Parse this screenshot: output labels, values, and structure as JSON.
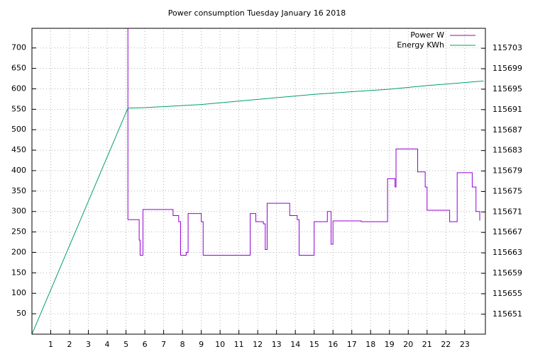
{
  "chart_data": {
    "type": "line",
    "title": "Power consumption Tuesday January 16 2018",
    "xlim": [
      0,
      24.1
    ],
    "xticks": [
      1,
      2,
      3,
      4,
      5,
      6,
      7,
      8,
      9,
      10,
      11,
      12,
      13,
      14,
      15,
      16,
      17,
      18,
      19,
      20,
      21,
      22,
      23
    ],
    "ylim": [
      0,
      748
    ],
    "yticks": [
      50,
      100,
      150,
      200,
      250,
      300,
      350,
      400,
      450,
      500,
      550,
      600,
      650,
      700
    ],
    "y2lim": [
      115647.1,
      115706.9
    ],
    "y2ticks": [
      115651,
      115655,
      115659,
      115663,
      115667,
      115671,
      115675,
      115679,
      115683,
      115687,
      115691,
      115695,
      115699,
      115703
    ],
    "grid": true,
    "legend": "top-right",
    "series": [
      {
        "name": "Power W",
        "color": "#9400d3",
        "x": [
          5.1,
          5.1,
          5.7,
          5.7,
          5.75,
          5.75,
          5.9,
          5.9,
          7.5,
          7.5,
          7.8,
          7.8,
          7.9,
          7.9,
          8.2,
          8.2,
          8.3,
          8.3,
          9.0,
          9.0,
          9.1,
          9.1,
          11.6,
          11.6,
          11.9,
          11.9,
          12.3,
          12.3,
          12.4,
          12.4,
          12.5,
          12.5,
          13.7,
          13.7,
          14.1,
          14.1,
          14.2,
          14.2,
          15.0,
          15.0,
          15.7,
          15.7,
          15.9,
          15.9,
          16.0,
          16.0,
          17.5,
          17.5,
          18.9,
          18.9,
          19.3,
          19.3,
          19.35,
          19.35,
          20.5,
          20.5,
          20.9,
          20.9,
          21.0,
          21.0,
          22.2,
          22.2,
          22.6,
          22.6,
          23.4,
          23.4,
          23.6,
          23.6,
          23.8,
          23.8
        ],
        "values": [
          748,
          280,
          280,
          230,
          230,
          193,
          193,
          305,
          305,
          290,
          290,
          275,
          275,
          193,
          193,
          200,
          200,
          295,
          295,
          275,
          275,
          193,
          193,
          295,
          295,
          275,
          275,
          270,
          270,
          207,
          207,
          320,
          320,
          290,
          290,
          280,
          280,
          193,
          193,
          275,
          275,
          300,
          300,
          220,
          220,
          277,
          277,
          275,
          275,
          380,
          380,
          360,
          360,
          453,
          453,
          397,
          397,
          360,
          360,
          303,
          303,
          275,
          275,
          395,
          395,
          360,
          360,
          300,
          300,
          278
        ]
      },
      {
        "name": "Energy KWh",
        "color": "#009e73",
        "axis": "y2",
        "x": [
          0,
          5.1,
          6,
          9,
          12,
          15,
          19,
          21,
          24
        ],
        "values": [
          115647.1,
          115691.3,
          115691.4,
          115692.0,
          115693.0,
          115694.0,
          115695.0,
          115695.7,
          115696.6
        ]
      }
    ]
  }
}
